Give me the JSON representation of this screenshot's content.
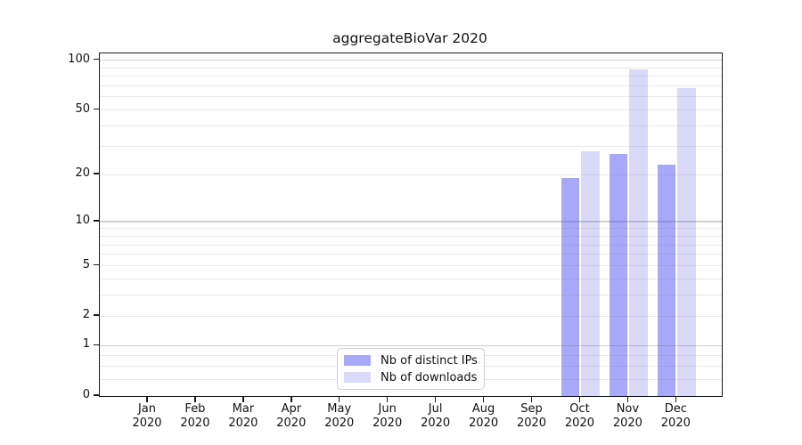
{
  "title": "aggregateBioVar 2020",
  "chart_data": {
    "type": "bar",
    "title": "aggregateBioVar 2020",
    "categories": [
      "Jan 2020",
      "Feb 2020",
      "Mar 2020",
      "Apr 2020",
      "May 2020",
      "Jun 2020",
      "Jul 2020",
      "Aug 2020",
      "Sep 2020",
      "Oct 2020",
      "Nov 2020",
      "Dec 2020"
    ],
    "series": [
      {
        "name": "Nb of distinct IPs",
        "color": "#a8a8fa",
        "values": [
          0,
          0,
          0,
          0,
          0,
          0,
          0,
          0,
          0,
          19,
          27,
          23
        ]
      },
      {
        "name": "Nb of downloads",
        "color": "#d9d9fa",
        "values": [
          0,
          0,
          0,
          0,
          0,
          0,
          0,
          0,
          0,
          28,
          88,
          68
        ]
      }
    ],
    "y_scale": "log1p",
    "y_ticks": [
      0,
      1,
      2,
      5,
      10,
      20,
      50,
      100
    ],
    "y_minor_gridlines": [
      0.25,
      0.5,
      0.75,
      2,
      3,
      4,
      5,
      6,
      7,
      8,
      9,
      20,
      30,
      40,
      50,
      60,
      70,
      80,
      90
    ],
    "y_major_gridlines": [
      1,
      10,
      100
    ],
    "ylim": [
      0,
      110
    ],
    "grid": "horizontal",
    "legend_position": "bottom-center",
    "colors": {
      "bar_distinct_ips": "#a8a8fa",
      "bar_downloads": "#d9d9fa",
      "spine": "#1a1a1a",
      "text": "#111111",
      "legend_border": "#cfcfcf"
    }
  }
}
